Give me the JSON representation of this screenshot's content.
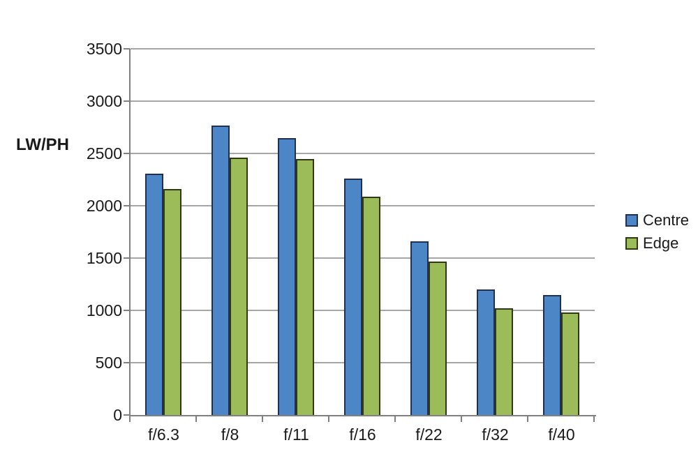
{
  "chart_data": {
    "type": "bar",
    "title": "",
    "ylabel": "LW/PH",
    "xlabel": "",
    "categories": [
      "f/6.3",
      "f/8",
      "f/11",
      "f/16",
      "f/22",
      "f/32",
      "f/40"
    ],
    "series": [
      {
        "name": "Centre",
        "color": "#4C86C6",
        "border_color": "#1F3050",
        "values": [
          2310,
          2770,
          2650,
          2260,
          1660,
          1200,
          1150
        ]
      },
      {
        "name": "Edge",
        "color": "#9CBB59",
        "border_color": "#2F3A14",
        "values": [
          2160,
          2460,
          2450,
          2090,
          1470,
          1020,
          980
        ]
      }
    ],
    "ylim": [
      0,
      3500
    ],
    "ytick_step": 500,
    "ytick_labels": [
      "0",
      "500",
      "1000",
      "1500",
      "2000",
      "2500",
      "3000",
      "3500"
    ],
    "grid": true,
    "legend_position": "right",
    "gridline_color": "#A6A6A6",
    "axis_color": "#808080",
    "background_color": "#FFFFFF",
    "text_color": "#1A1A1A"
  }
}
